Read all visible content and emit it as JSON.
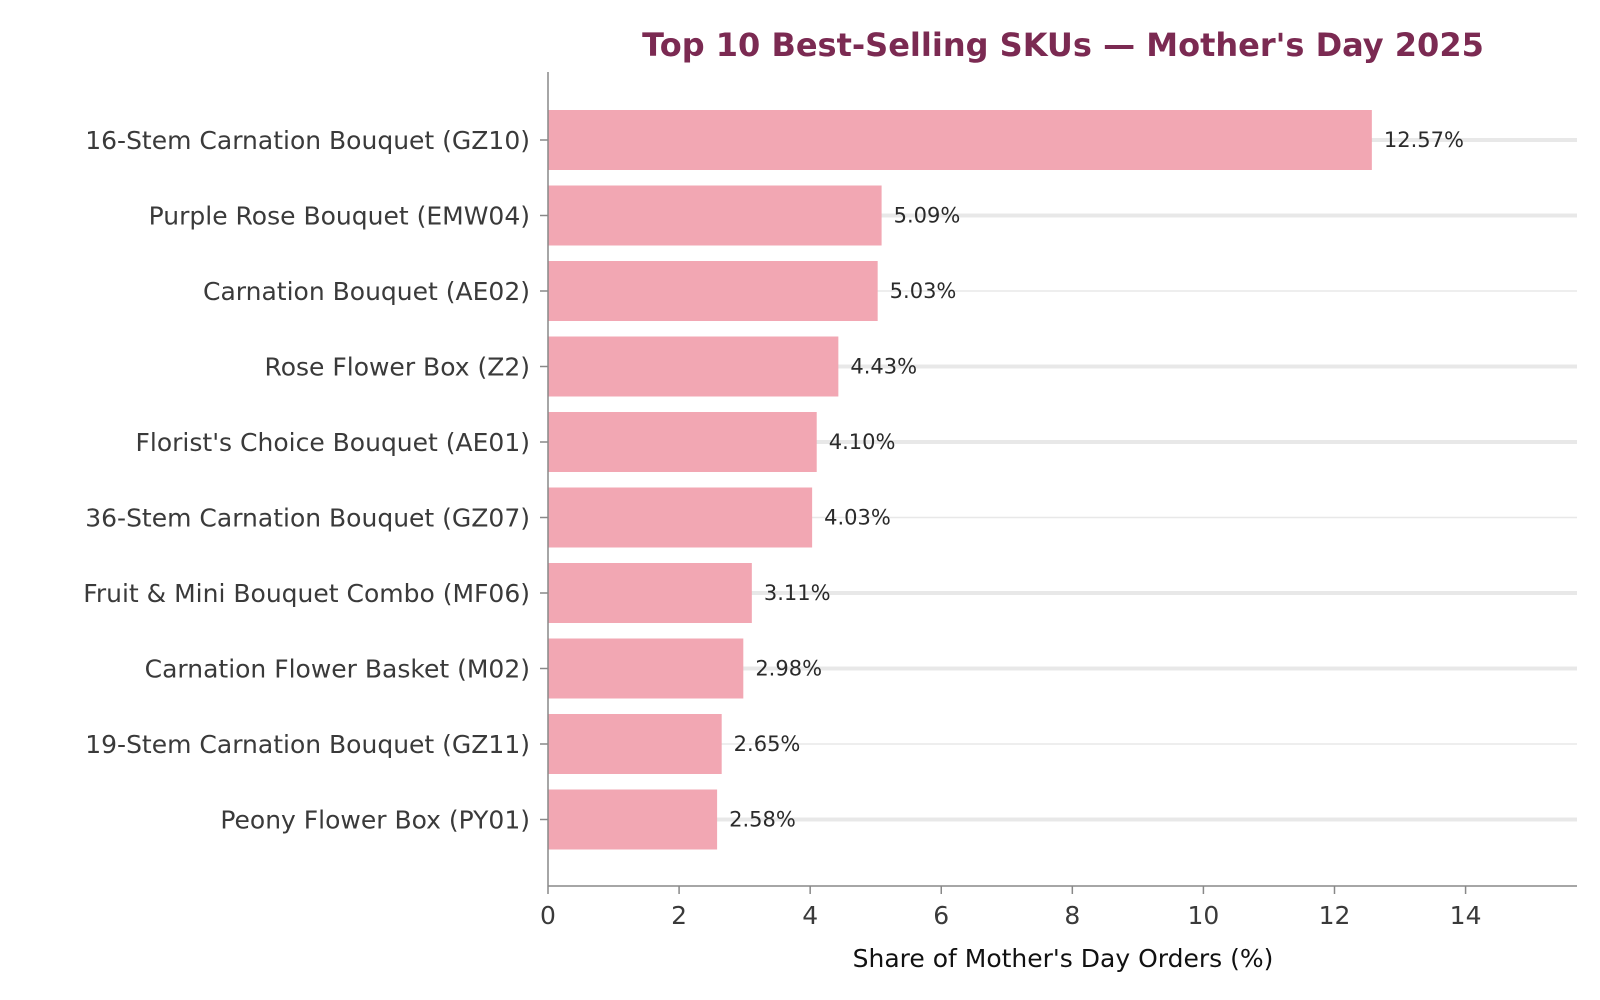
{
  "chart_data": {
    "type": "bar",
    "orientation": "horizontal",
    "title": "Top 10 Best-Selling SKUs — Mother's Day 2025",
    "xlabel": "Share of Mother's Day Orders (%)",
    "ylabel": "",
    "xlim": [
      0,
      15.7
    ],
    "xticks": [
      0,
      2,
      4,
      6,
      8,
      10,
      12,
      14
    ],
    "grid": "off",
    "categories": [
      "16-Stem Carnation Bouquet (GZ10)",
      "Purple Rose Bouquet (EMW04)",
      "Carnation Bouquet (AE02)",
      "Rose Flower Box (Z2)",
      "Florist's Choice Bouquet (AE01)",
      "36-Stem Carnation Bouquet (GZ07)",
      "Fruit & Mini Bouquet Combo (MF06)",
      "Carnation Flower Basket (M02)",
      "19-Stem Carnation Bouquet (GZ11)",
      "Peony Flower Box (PY01)"
    ],
    "values": [
      12.57,
      5.09,
      5.03,
      4.43,
      4.1,
      4.03,
      3.11,
      2.98,
      2.65,
      2.58
    ],
    "data_labels": [
      "12.57%",
      "5.09%",
      "5.03%",
      "4.43%",
      "4.10%",
      "4.03%",
      "3.11%",
      "2.98%",
      "2.65%",
      "2.58%"
    ],
    "colors": {
      "bar": "#f2a7b3",
      "title": "#7b2a52",
      "axis": "#888888",
      "row_band": "#e8e8e8"
    }
  }
}
